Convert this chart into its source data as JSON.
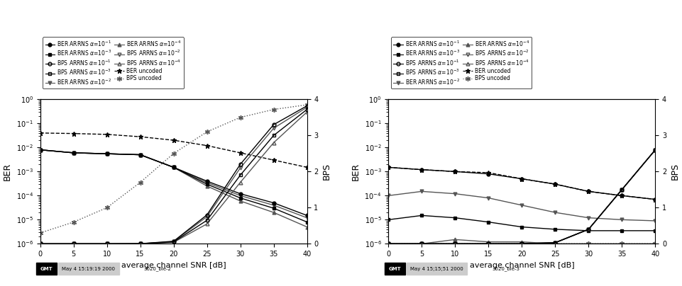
{
  "snr": [
    0,
    5,
    10,
    15,
    20,
    25,
    30,
    35,
    40
  ],
  "plot1": {
    "ber_a1": [
      0.008,
      0.006,
      0.0055,
      0.005,
      0.0015,
      0.0004,
      0.00012,
      5e-05,
      1.5e-05
    ],
    "ber_a2": [
      0.008,
      0.006,
      0.0055,
      0.005,
      0.0015,
      0.00035,
      0.0001,
      4e-05,
      1.2e-05
    ],
    "ber_a3": [
      0.008,
      0.006,
      0.0055,
      0.005,
      0.0015,
      0.0003,
      8e-05,
      3e-05,
      8e-06
    ],
    "ber_a4": [
      0.008,
      0.006,
      0.0055,
      0.005,
      0.0015,
      0.00025,
      6e-05,
      2e-05,
      5e-06
    ],
    "bps_a1": [
      1e-06,
      1.5e-05,
      0.00015,
      0.0025,
      0.07,
      0.8,
      2.2,
      3.3,
      3.82
    ],
    "bps_a2": [
      1e-06,
      1.5e-05,
      0.00015,
      0.0025,
      0.06,
      0.75,
      2.1,
      3.2,
      3.78
    ],
    "bps_a3": [
      1e-06,
      1.5e-05,
      0.00015,
      0.0025,
      0.05,
      0.65,
      1.9,
      3.0,
      3.72
    ],
    "bps_a4": [
      1e-06,
      1.5e-05,
      0.00015,
      0.0025,
      0.04,
      0.55,
      1.7,
      2.8,
      3.65
    ],
    "ber_unc": [
      0.04,
      0.038,
      0.035,
      0.028,
      0.02,
      0.012,
      0.006,
      0.003,
      0.0015
    ],
    "bps_unc": [
      0.3,
      0.6,
      1.0,
      1.7,
      2.5,
      3.1,
      3.5,
      3.72,
      3.85
    ]
  },
  "plot2": {
    "ber_a1": [
      0.0015,
      0.0012,
      0.001,
      0.0008,
      0.0005,
      0.0003,
      0.00015,
      0.0001,
      7e-05
    ],
    "ber_a2": [
      0.0001,
      0.00015,
      0.00012,
      8e-05,
      4e-05,
      2e-05,
      1.2e-05,
      1e-05,
      9e-06
    ],
    "ber_a3": [
      1e-05,
      1.5e-05,
      1.2e-05,
      8e-06,
      5e-06,
      4e-06,
      3.5e-06,
      3.5e-06,
      3.5e-06
    ],
    "ber_a4": [
      1e-06,
      1e-06,
      1.5e-06,
      1.2e-06,
      1.2e-06,
      1e-06,
      1e-06,
      1e-06,
      1e-06
    ],
    "bps_a1": [
      1e-06,
      1e-06,
      1e-06,
      1e-05,
      0.0005,
      0.03,
      0.4,
      1.5,
      2.6
    ],
    "bps_a2": [
      1e-06,
      1e-06,
      1e-06,
      1e-05,
      0.0005,
      0.03,
      0.4,
      1.5,
      2.6
    ],
    "bps_a3": [
      1e-06,
      1e-06,
      1e-06,
      1e-05,
      0.0005,
      0.03,
      0.4,
      1.5,
      2.6
    ],
    "bps_a4": [
      1e-06,
      1e-06,
      1e-06,
      1e-05,
      0.0005,
      0.03,
      0.4,
      1.5,
      2.6
    ],
    "ber_unc": [
      0.0015,
      0.0012,
      0.001,
      0.0009,
      0.0005,
      0.0003,
      0.00015,
      0.0001,
      7e-05
    ],
    "bps_unc": [
      0.0025,
      0.0025,
      0.0025,
      0.0025,
      0.002,
      0.0017,
      0.0014,
      0.0012,
      0.001
    ]
  },
  "xlabel": "average channel SNR [dB]",
  "ylabel_left": "BER",
  "ylabel_right": "BPS",
  "stamp1": [
    "GMT",
    "May 4 15:19:19 2000",
    "3020_ble-2"
  ],
  "stamp2": [
    "GMT",
    "May 4 15;15;51 2000",
    "3020_ble-3"
  ]
}
